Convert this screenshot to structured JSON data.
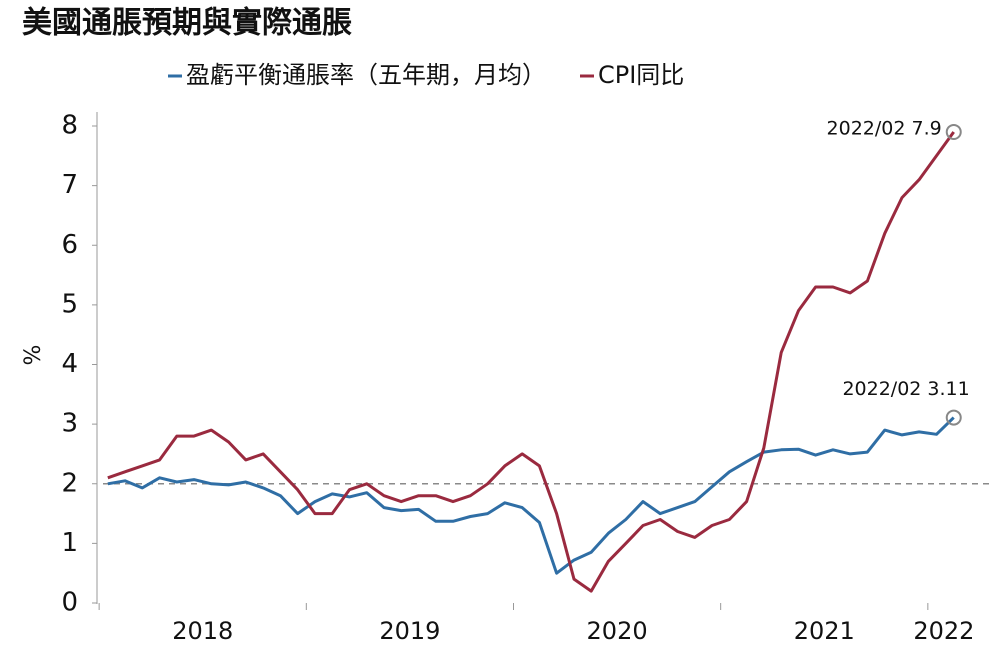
{
  "chart_data": {
    "type": "line",
    "title": "美國通脹預期與實際通脹",
    "y_label": "%",
    "x": [
      2018.042,
      2018.125,
      2018.208,
      2018.292,
      2018.375,
      2018.458,
      2018.542,
      2018.625,
      2018.708,
      2018.792,
      2018.875,
      2018.958,
      2019.042,
      2019.125,
      2019.208,
      2019.292,
      2019.375,
      2019.458,
      2019.542,
      2019.625,
      2019.708,
      2019.792,
      2019.875,
      2019.958,
      2020.042,
      2020.125,
      2020.208,
      2020.292,
      2020.375,
      2020.458,
      2020.542,
      2020.625,
      2020.708,
      2020.792,
      2020.875,
      2020.958,
      2021.042,
      2021.125,
      2021.208,
      2021.292,
      2021.375,
      2021.458,
      2021.542,
      2021.625,
      2021.708,
      2021.792,
      2021.875,
      2021.958,
      2022.042,
      2022.125
    ],
    "series": [
      {
        "name": "盈虧平衡通脹率（五年期，月均）",
        "color": "#2f6ea5",
        "values": [
          2.0,
          2.05,
          1.93,
          2.1,
          2.03,
          2.07,
          2.0,
          1.98,
          2.03,
          1.93,
          1.8,
          1.5,
          1.7,
          1.83,
          1.78,
          1.85,
          1.6,
          1.55,
          1.57,
          1.37,
          1.37,
          1.45,
          1.5,
          1.68,
          1.6,
          1.35,
          0.5,
          0.72,
          0.85,
          1.17,
          1.4,
          1.7,
          1.5,
          1.6,
          1.7,
          1.95,
          2.2,
          2.37,
          2.53,
          2.57,
          2.58,
          2.48,
          2.57,
          2.5,
          2.53,
          2.9,
          2.82,
          2.87,
          2.83,
          3.11
        ]
      },
      {
        "name": "CPI同比",
        "color": "#9a2a3f",
        "values": [
          2.1,
          2.2,
          2.3,
          2.4,
          2.8,
          2.8,
          2.9,
          2.7,
          2.4,
          2.5,
          2.2,
          1.9,
          1.5,
          1.5,
          1.9,
          2.0,
          1.8,
          1.7,
          1.8,
          1.8,
          1.7,
          1.8,
          2.0,
          2.3,
          2.5,
          2.3,
          1.5,
          0.4,
          0.2,
          0.7,
          1.0,
          1.3,
          1.4,
          1.2,
          1.1,
          1.3,
          1.4,
          1.7,
          2.6,
          4.2,
          4.9,
          5.3,
          5.3,
          5.2,
          5.4,
          6.2,
          6.8,
          7.1,
          7.5,
          7.9
        ]
      }
    ],
    "annotations": [
      "2022/02 3.11",
      "2022/02 7.9"
    ],
    "reference_line": {
      "value": 2,
      "color": "#8a8a8a"
    },
    "xlim": [
      2017.98,
      2022.3
    ],
    "xticks": [
      2018,
      2019,
      2020,
      2021,
      2022
    ],
    "ylim": [
      0,
      8
    ],
    "yticks": [
      0,
      1,
      2,
      3,
      4,
      5,
      6,
      7,
      8
    ],
    "legend": "top"
  }
}
